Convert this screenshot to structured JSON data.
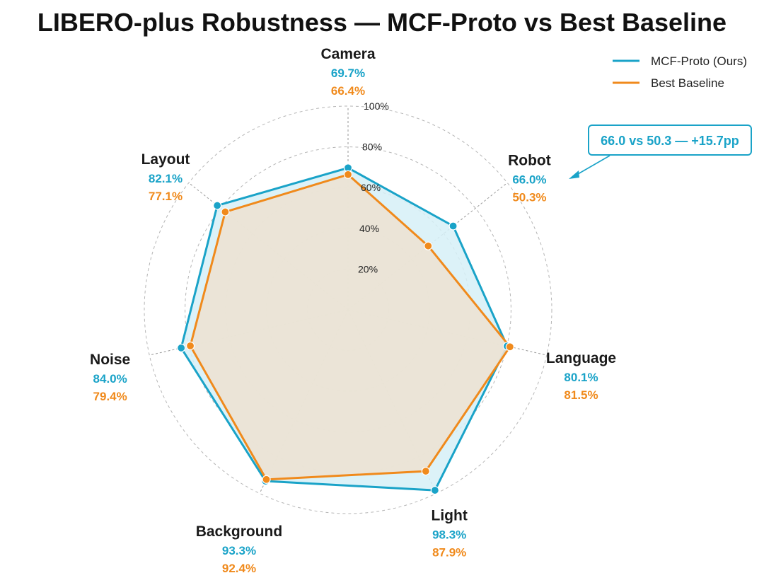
{
  "colors": {
    "ours": "#1aa3c8",
    "ours_fill": "#d6f0f7",
    "baseline": "#f08a1c",
    "baseline_fill": "#ece2d3",
    "grid": "#b5b5b5"
  },
  "chart_data": {
    "type": "radar",
    "title": "LIBERO-plus Robustness — MCF-Proto vs Best Baseline",
    "axes": [
      "Camera",
      "Robot",
      "Language",
      "Light",
      "Background",
      "Noise",
      "Layout"
    ],
    "rlim": [
      0,
      100
    ],
    "ticks": [
      "20%",
      "40%",
      "60%",
      "80%",
      "100%"
    ],
    "grid": true,
    "legend_position": "top-right",
    "series": [
      {
        "name": "MCF-Proto (Ours)",
        "values": [
          69.7,
          66.0,
          80.1,
          98.3,
          93.3,
          84.0,
          82.1
        ],
        "labels": [
          "69.7%",
          "66.0%",
          "80.1%",
          "98.3%",
          "93.3%",
          "84.0%",
          "82.1%"
        ]
      },
      {
        "name": "Best Baseline",
        "values": [
          66.4,
          50.3,
          81.5,
          87.9,
          92.4,
          79.4,
          77.1
        ],
        "labels": [
          "66.4%",
          "50.3%",
          "81.5%",
          "87.9%",
          "92.4%",
          "79.4%",
          "77.1%"
        ]
      }
    ],
    "annotation": {
      "text": "66.0 vs 50.3 — +15.7pp",
      "axis": "Robot"
    }
  }
}
